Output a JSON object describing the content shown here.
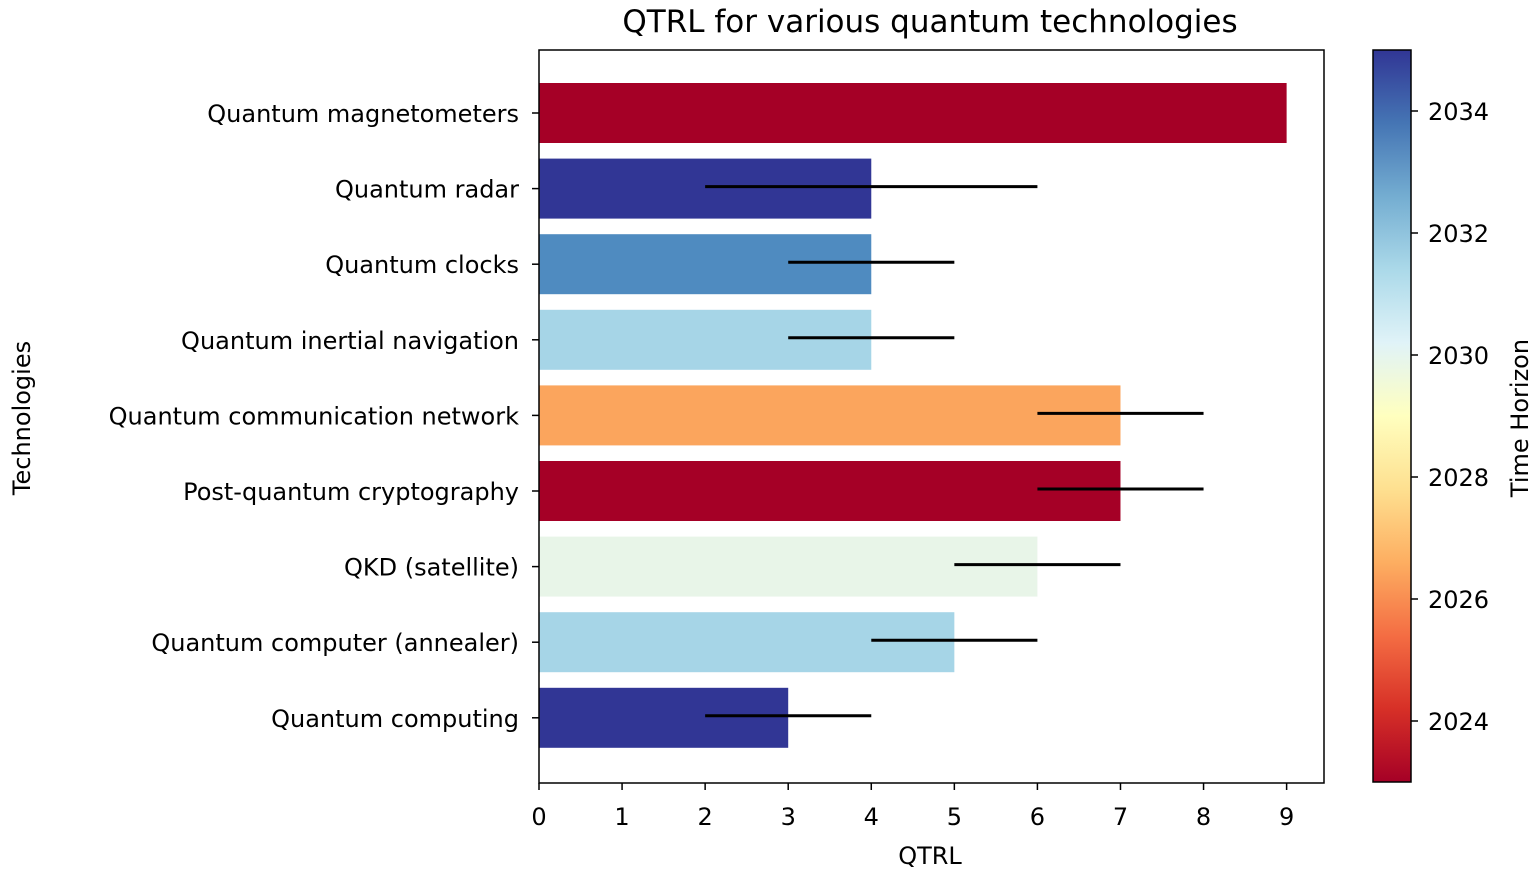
{
  "chart_data": {
    "type": "bar",
    "orientation": "horizontal",
    "title": "QTRL for various quantum technologies",
    "xlabel": "QTRL",
    "ylabel": "Technologies",
    "xlim": [
      0,
      9.45
    ],
    "xticks": [
      0,
      1,
      2,
      3,
      4,
      5,
      6,
      7,
      8,
      9
    ],
    "grid": false,
    "categories": [
      "Quantum magnetometers",
      "Quantum radar",
      "Quantum clocks",
      "Quantum inertial navigation",
      "Quantum communication network",
      "Post-quantum cryptography",
      "QKD (satellite)",
      "Quantum computer (annealer)",
      "Quantum computing"
    ],
    "values": [
      9,
      4,
      4,
      4,
      7,
      7,
      6,
      5,
      3
    ],
    "error_ranges": [
      null,
      [
        2,
        6
      ],
      [
        3,
        5
      ],
      [
        3,
        5
      ],
      [
        6,
        8
      ],
      [
        6,
        8
      ],
      [
        5,
        7
      ],
      [
        4,
        6
      ],
      [
        2,
        4
      ]
    ],
    "time_horizon": [
      2023,
      2035,
      2033,
      2032,
      2026,
      2023,
      2030,
      2032,
      2035
    ],
    "bar_colors": [
      "#a50026",
      "#313695",
      "#4f8bc0",
      "#a6d5e7",
      "#fba55d",
      "#a50026",
      "#e8f5e8",
      "#a6d5e7",
      "#313695"
    ],
    "colorbar": {
      "label": "Time Horizon",
      "range": [
        2023,
        2035
      ],
      "ticks": [
        2024,
        2026,
        2028,
        2030,
        2032,
        2034
      ],
      "colormap": "RdYlBu",
      "stops": [
        "#a50026",
        "#d73027",
        "#f46d43",
        "#fdae61",
        "#fee090",
        "#ffffbf",
        "#e0f3f8",
        "#abd9e9",
        "#74add1",
        "#4575b4",
        "#313695"
      ]
    }
  }
}
